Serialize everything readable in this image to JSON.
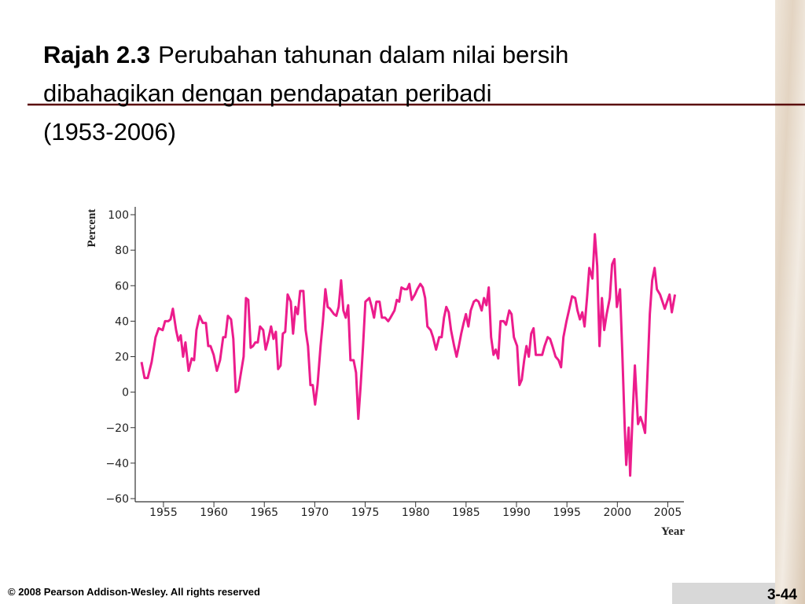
{
  "slide": {
    "title": [
      "Rajah 2.3",
      "Perubahan tahunan dalam nilai bersih",
      "dibahagikan dengan pendapatan peribadi",
      "(1953-2006)"
    ],
    "footer": "© 2008 Pearson Addison-Wesley. All rights reserved",
    "page": "3-44"
  },
  "chart_data": {
    "type": "line",
    "x_label": "Year",
    "y_label": "Percent",
    "color": "#ec1c8c",
    "xlim": [
      1952.2,
      2006.6
    ],
    "xticks": [
      1955,
      1960,
      1965,
      1970,
      1975,
      1980,
      1985,
      1990,
      1995,
      2000,
      2005
    ],
    "ylim": [
      -60,
      100
    ],
    "yticks": [
      {
        "value": -60,
        "label": "−60"
      },
      {
        "value": -40,
        "label": "−40"
      },
      {
        "value": -20,
        "label": "−20"
      },
      0,
      20,
      40,
      60,
      80,
      100
    ],
    "x": [
      1952.82,
      1953.13,
      1953.44,
      1953.83,
      1954.22,
      1954.53,
      1954.92,
      1955.16,
      1955.47,
      1955.7,
      1955.93,
      1956.25,
      1956.48,
      1956.71,
      1956.95,
      1957.18,
      1957.49,
      1957.8,
      1958.04,
      1958.27,
      1958.58,
      1958.9,
      1959.21,
      1959.44,
      1959.67,
      1959.98,
      1960.3,
      1960.61,
      1960.92,
      1961.15,
      1961.39,
      1961.7,
      1961.93,
      1962.17,
      1962.4,
      1962.63,
      1962.95,
      1963.18,
      1963.41,
      1963.65,
      1963.88,
      1964.11,
      1964.35,
      1964.58,
      1964.89,
      1965.13,
      1965.36,
      1965.67,
      1965.91,
      1966.14,
      1966.37,
      1966.61,
      1966.84,
      1967.07,
      1967.31,
      1967.62,
      1967.85,
      1968.09,
      1968.32,
      1968.55,
      1968.87,
      1969.1,
      1969.33,
      1969.57,
      1969.8,
      1970.03,
      1970.27,
      1970.58,
      1970.81,
      1971.05,
      1971.28,
      1971.51,
      1971.9,
      1972.14,
      1972.37,
      1972.61,
      1972.84,
      1973.07,
      1973.31,
      1973.54,
      1973.85,
      1974.09,
      1974.32,
      1974.55,
      1974.79,
      1975.02,
      1975.41,
      1975.64,
      1975.88,
      1976.11,
      1976.42,
      1976.66,
      1976.97,
      1977.28,
      1977.51,
      1977.9,
      1978.14,
      1978.37,
      1978.6,
      1978.92,
      1979.15,
      1979.38,
      1979.62,
      1979.93,
      1980.16,
      1980.47,
      1980.71,
      1980.94,
      1981.17,
      1981.49,
      1981.72,
      1982.03,
      1982.34,
      1982.58,
      1982.81,
      1983.04,
      1983.28,
      1983.51,
      1983.82,
      1984.06,
      1984.29,
      1984.52,
      1984.76,
      1984.99,
      1985.23,
      1985.46,
      1985.77,
      1986.0,
      1986.24,
      1986.55,
      1986.78,
      1987.02,
      1987.25,
      1987.48,
      1987.72,
      1987.95,
      1988.19,
      1988.42,
      1988.73,
      1988.96,
      1989.28,
      1989.51,
      1989.74,
      1990.06,
      1990.29,
      1990.52,
      1990.76,
      1990.99,
      1991.22,
      1991.46,
      1991.69,
      1991.92,
      1992.24,
      1992.55,
      1992.78,
      1993.09,
      1993.33,
      1993.56,
      1993.87,
      1994.18,
      1994.42,
      1994.65,
      1994.96,
      1995.2,
      1995.51,
      1995.82,
      1996.05,
      1996.29,
      1996.52,
      1996.75,
      1996.99,
      1997.22,
      1997.53,
      1997.77,
      1998.0,
      1998.23,
      1998.47,
      1998.7,
      1998.94,
      1999.25,
      1999.48,
      1999.71,
      1999.95,
      2000.26,
      2000.49,
      2000.73,
      2000.88,
      2001.12,
      2001.27,
      2001.51,
      2001.74,
      2002.05,
      2002.29,
      2002.52,
      2002.75,
      2002.99,
      2003.22,
      2003.45,
      2003.69,
      2003.92,
      2004.23,
      2004.47,
      2004.7,
      2004.93,
      2005.17,
      2005.4,
      2005.71
    ],
    "values": [
      17,
      8,
      8,
      17,
      31,
      36,
      35,
      40,
      40,
      41,
      47,
      35,
      29,
      32,
      20,
      28,
      12,
      19,
      18,
      35,
      43,
      39,
      39,
      26,
      26,
      21,
      12,
      18,
      31,
      31,
      43,
      41,
      30,
      0,
      1,
      9,
      20,
      53,
      52,
      25,
      26,
      28,
      28,
      37,
      35,
      24,
      29,
      37,
      30,
      34,
      13,
      15,
      33,
      34,
      55,
      51,
      33,
      48,
      44,
      57,
      57,
      35,
      26,
      4,
      4,
      -7,
      4,
      26,
      40,
      58,
      48,
      47,
      44,
      43,
      48,
      63,
      46,
      42,
      49,
      18,
      18,
      11,
      -15,
      4,
      26,
      51,
      53,
      48,
      42,
      51,
      51,
      42,
      42,
      40,
      42,
      46,
      52,
      51,
      59,
      58,
      58,
      61,
      52,
      55,
      58,
      61,
      59,
      53,
      37,
      35,
      31,
      24,
      31,
      31,
      42,
      48,
      45,
      35,
      26,
      20,
      26,
      33,
      39,
      44,
      37,
      46,
      51,
      52,
      51,
      46,
      53,
      49,
      59,
      31,
      21,
      24,
      19,
      40,
      40,
      38,
      46,
      44,
      31,
      26,
      4,
      7,
      18,
      26,
      20,
      33,
      36,
      21,
      21,
      21,
      26,
      31,
      30,
      26,
      20,
      18,
      14,
      31,
      40,
      46,
      54,
      53,
      46,
      41,
      45,
      37,
      53,
      70,
      64,
      89,
      71,
      26,
      53,
      35,
      44,
      53,
      72,
      75,
      48,
      58,
      22,
      -20,
      -41,
      -20,
      -47,
      -13,
      15,
      -18,
      -14,
      -18,
      -23,
      11,
      44,
      63,
      70,
      58,
      55,
      51,
      47,
      51,
      55,
      45,
      55
    ]
  }
}
